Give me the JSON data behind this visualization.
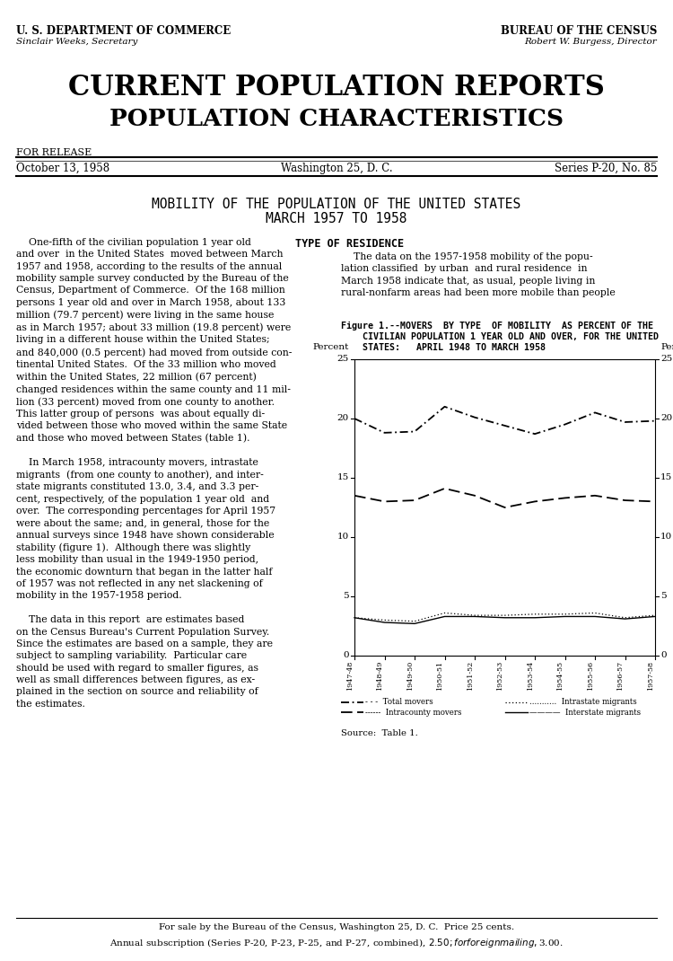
{
  "header_left_line1": "U. S. DEPARTMENT OF COMMERCE",
  "header_left_line2": "Sinclair Weeks, Secretary",
  "header_right_line1": "BUREAU OF THE CENSUS",
  "header_right_line2": "Robert W. Burgess, Director",
  "title1": "CURRENT POPULATION REPORTS",
  "title2": "POPULATION CHARACTERISTICS",
  "release_label": "FOR RELEASE",
  "date_left": "October 13, 1958",
  "date_center": "Washington 25, D. C.",
  "date_right": "Series P-20, No. 85",
  "report_title_line1": "MOBILITY OF THE POPULATION OF THE UNITED STATES",
  "report_title_line2": "MARCH 1957 TO 1958",
  "left_text": "    One-fifth of the civilian population 1 year old\nand over  in the United States  moved between March\n1957 and 1958, according to the results of the annual\nmobility sample survey conducted by the Bureau of the\nCensus, Department of Commerce.  Of the 168 million\npersons 1 year old and over in March 1958, about 133\nmillion (79.7 percent) were living in the same house\nas in March 1957; about 33 million (19.8 percent) were\nliving in a different house within the United States;\nand 840,000 (0.5 percent) had moved from outside con-\ntinental United States.  Of the 33 million who moved\nwithin the United States, 22 million (67 percent)\nchanged residences within the same county and 11 mil-\nlion (33 percent) moved from one county to another.\nThis latter group of persons  was about equally di-\nvided between those who moved within the same State\nand those who moved between States (table 1).\n\n    In March 1958, intracounty movers, intrastate\nmigrants  (from one county to another), and inter-\nstate migrants constituted 13.0, 3.4, and 3.3 per-\ncent, respectively, of the population 1 year old  and\nover.  The corresponding percentages for April 1957\nwere about the same; and, in general, those for the\nannual surveys since 1948 have shown considerable\nstability (figure 1).  Although there was slightly\nless mobility than usual in the 1949-1950 period,\nthe economic downturn that began in the latter half\nof 1957 was not reflected in any net slackening of\nmobility in the 1957-1958 period.\n\n    The data in this report  are estimates based\non the Census Bureau's Current Population Survey.\nSince the estimates are based on a sample, they are\nsubject to sampling variability.  Particular care\nshould be used with regard to smaller figures, as\nwell as small differences between figures, as ex-\nplained in the section on source and reliability of\nthe estimates.",
  "right_text_top": "TYPE OF RESIDENCE\n\n    The data on the 1957-1958 mobility of the popu-\nlation classified  by urban  and rural residence  in\nMarch 1958 indicate that, as usual, people living in\nrural-nonfarm areas had been more mobile than people",
  "figure_title_line1": "Figure 1.--MOVERS  BY TYPE  OF MOBILITY  AS PERCENT OF THE",
  "figure_title_line2": "    CIVILIAN POPULATION 1 YEAR OLD AND OVER, FOR THE UNITED",
  "figure_title_line3": "    STATES:   APRIL 1948 TO MARCH 1958",
  "x_labels": [
    "1947-48",
    "1948-49",
    "1949-50",
    "1950-51",
    "1951-52",
    "1952-53",
    "1953-54",
    "1954-55",
    "1955-56",
    "1956-57",
    "1957-58"
  ],
  "total_movers": [
    20.0,
    18.8,
    18.9,
    21.0,
    20.1,
    19.4,
    18.7,
    19.5,
    20.5,
    19.7,
    19.8
  ],
  "intracounty_movers": [
    13.5,
    13.0,
    13.1,
    14.1,
    13.5,
    12.5,
    13.0,
    13.3,
    13.5,
    13.1,
    13.0
  ],
  "intrastate_migrants": [
    3.2,
    3.0,
    2.9,
    3.6,
    3.4,
    3.4,
    3.5,
    3.5,
    3.6,
    3.2,
    3.4
  ],
  "interstate_migrants": [
    3.2,
    2.8,
    2.7,
    3.3,
    3.3,
    3.2,
    3.2,
    3.3,
    3.3,
    3.1,
    3.3
  ],
  "ylabel": "Percent",
  "ylim": [
    0,
    25
  ],
  "yticks": [
    0,
    5,
    10,
    15,
    20,
    25
  ],
  "source_note": "Source:  Table 1.",
  "legend_total": "- - -  Total movers",
  "legend_intracounty": "------  Intracounty movers",
  "legend_intrastate": "...........  Intrastate migrants",
  "legend_interstate": "————  Interstate migrants",
  "footer_line1": "For sale by the Bureau of the Census, Washington 25, D. C.  Price 25 cents.",
  "footer_line2": "Annual subscription (Series P-20, P-23, P-25, and P-27, combined), $2.50; for foreign mailing, $3.00."
}
